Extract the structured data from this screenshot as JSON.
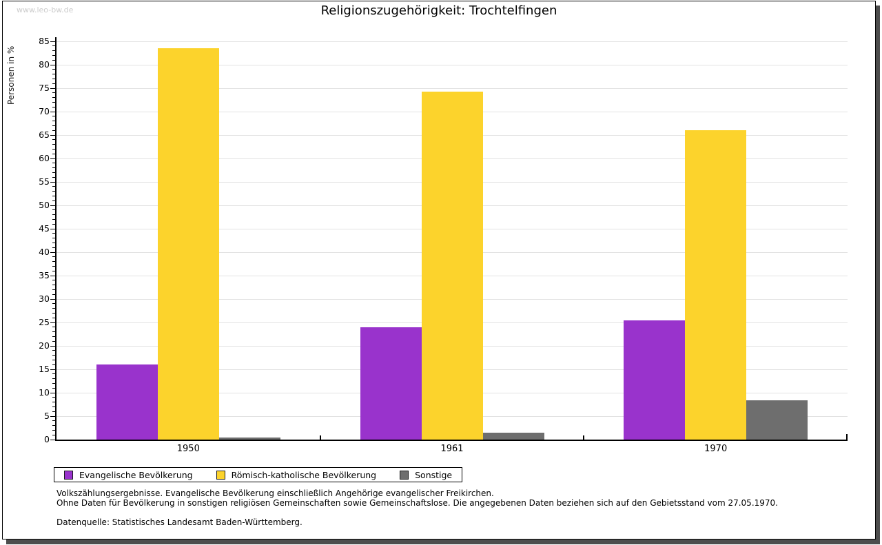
{
  "watermark": "www.leo-bw.de",
  "title": "Religionszugehörigkeit: Trochtelfingen",
  "chart_data": {
    "type": "bar",
    "title": "Religionszugehörigkeit: Trochtelfingen",
    "ylabel": "Personen in %",
    "xlabel": "",
    "categories": [
      "1950",
      "1961",
      "1970"
    ],
    "series": [
      {
        "name": "Evangelische Bevölkerung",
        "color": "#9933cc",
        "values": [
          16.0,
          24.0,
          25.5
        ]
      },
      {
        "name": "Römisch-katholische Bevölkerung",
        "color": "#fcd32c",
        "values": [
          83.6,
          74.3,
          66.0
        ]
      },
      {
        "name": "Sonstige",
        "color": "#6e6e6e",
        "values": [
          0.4,
          1.5,
          8.4
        ]
      }
    ],
    "ylim": [
      0,
      85
    ],
    "ytick_step": 5,
    "minor_tick_step": 1,
    "grid": "horizontal",
    "grid_color": "#e2e2e2",
    "legend_position": "bottom"
  },
  "footer": {
    "line1": "Volkszählungsergebnisse. Evangelische Bevölkerung einschließlich Angehörige evangelischer Freikirchen.",
    "line2": "Ohne Daten für Bevölkerung in sonstigen religiösen Gemeinschaften sowie Gemeinschaftslose. Die angegebenen Daten beziehen sich auf den Gebietsstand vom 27.05.1970.",
    "source": "Datenquelle: Statistisches Landesamt Baden-Württemberg."
  }
}
